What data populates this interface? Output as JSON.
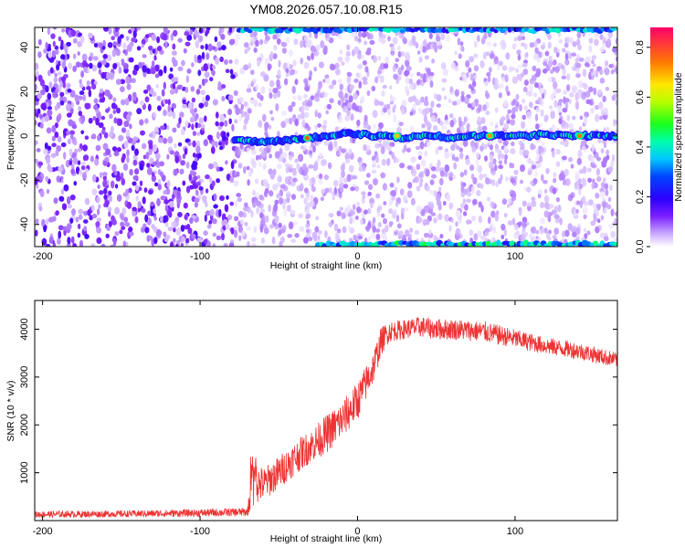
{
  "title": "YM08.2026.057.10.08.R15",
  "chart_data": [
    {
      "type": "heatmap",
      "xlabel": "Height of straight line (km)",
      "ylabel": "Frequency (Hz)",
      "xlim": [
        -205,
        165
      ],
      "ylim": [
        -50,
        49
      ],
      "xticks": [
        -200,
        -100,
        0,
        100
      ],
      "yticks": [
        -40,
        -20,
        0,
        20,
        40
      ],
      "colorbar": {
        "label": "Normalized spectral amplitude",
        "range": [
          0.0,
          0.88
        ],
        "ticks": [
          "0.0",
          "0.2",
          "0.4",
          "0.6",
          "0.8"
        ],
        "tick_values": [
          0.0,
          0.2,
          0.4,
          0.6,
          0.8
        ]
      },
      "signal_trace": {
        "start_km": -78,
        "end_km": 165,
        "frequency_hz": [
          [
            -78,
            -2
          ],
          [
            -60,
            -3
          ],
          [
            -45,
            -2
          ],
          [
            -30,
            -1
          ],
          [
            -20,
            0
          ],
          [
            -10,
            1
          ],
          [
            0,
            1
          ],
          [
            10,
            0
          ],
          [
            20,
            0
          ],
          [
            30,
            -1
          ],
          [
            40,
            0
          ],
          [
            50,
            0
          ],
          [
            60,
            -1
          ],
          [
            70,
            0
          ],
          [
            80,
            0
          ],
          [
            90,
            0
          ],
          [
            100,
            0
          ],
          [
            110,
            0
          ],
          [
            120,
            1
          ],
          [
            130,
            0
          ],
          [
            140,
            0
          ],
          [
            150,
            0
          ],
          [
            165,
            0
          ]
        ],
        "peaks": [
          {
            "x_km": -32,
            "f_hz": -1,
            "amp": 0.78
          },
          {
            "x_km": 25,
            "f_hz": 0,
            "amp": 0.68
          },
          {
            "x_km": 84,
            "f_hz": 0,
            "amp": 0.72
          },
          {
            "x_km": 141,
            "f_hz": 0,
            "amp": 0.75
          }
        ]
      },
      "noise_level_left": 0.15,
      "noise_level_right": 0.06,
      "noise_transition_km": -78
    },
    {
      "type": "line",
      "xlabel": "Height of straight line (km)",
      "ylabel": "SNR (10 * v/v)",
      "xlim": [
        -205,
        165
      ],
      "ylim": [
        0,
        4600
      ],
      "xticks": [
        -200,
        -100,
        0,
        100
      ],
      "yticks": [
        1000,
        2000,
        3000,
        4000
      ],
      "series": [
        {
          "name": "SNR",
          "color": "#ee3333",
          "envelope": {
            "x": [
              -205,
              -150,
              -100,
              -70,
              -66,
              -60,
              -50,
              -40,
              -30,
              -20,
              -10,
              0,
              10,
              15,
              20,
              30,
              40,
              50,
              60,
              80,
              100,
              120,
              140,
              165
            ],
            "mean": [
              130,
              140,
              160,
              180,
              800,
              750,
              1000,
              1300,
              1550,
              1800,
              2100,
              2500,
              3200,
              3750,
              3950,
              4000,
              4050,
              4000,
              4000,
              3950,
              3800,
              3650,
              3550,
              3350
            ],
            "spread": [
              70,
              70,
              80,
              90,
              500,
              350,
              350,
              350,
              350,
              400,
              400,
              400,
              350,
              300,
              220,
              200,
              220,
              220,
              220,
              220,
              200,
              180,
              180,
              160
            ]
          }
        }
      ]
    }
  ]
}
